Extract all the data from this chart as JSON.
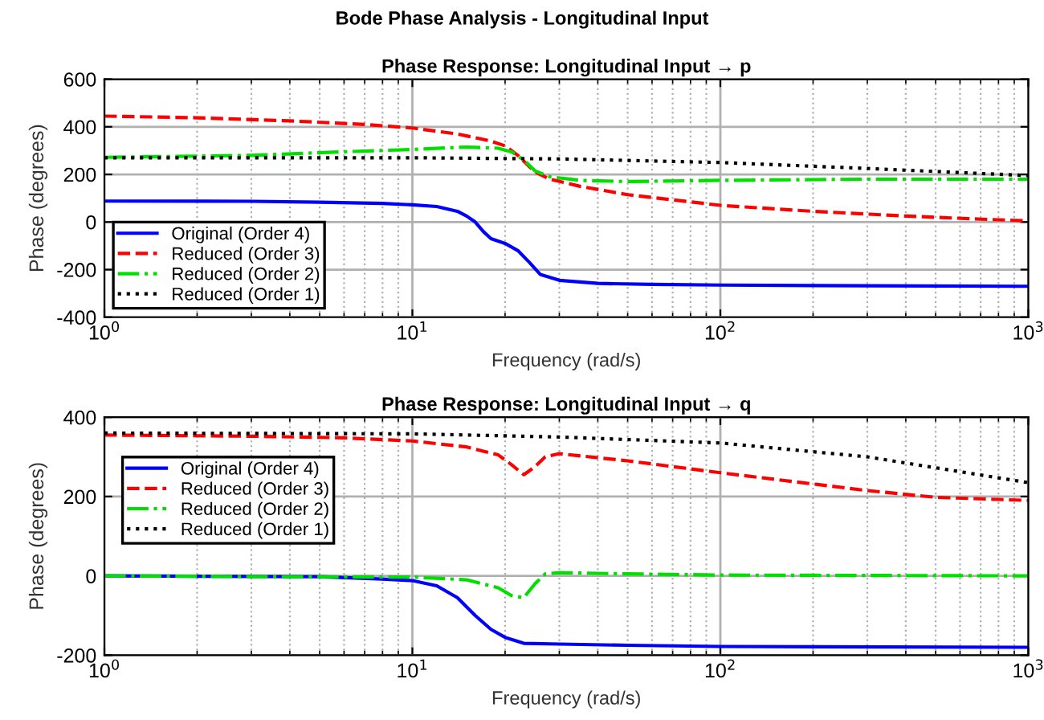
{
  "chart_data": [
    {
      "type": "line",
      "title": "Phase Response: Longitudinal Input → p",
      "annotations": [
        "Bode Phase Analysis - Longitudinal Input"
      ],
      "xlabel": "Frequency (rad/s)",
      "ylabel": "Phase (degrees)",
      "log": "x",
      "xlim": [
        1,
        1000
      ],
      "xticks": [
        {
          "value": 1,
          "label": "10$^{0}$"
        },
        {
          "value": 10,
          "label": "10$^{1}$"
        },
        {
          "value": 100,
          "label": "10$^{2}$"
        },
        {
          "value": 1000,
          "label": "10$^{3}$"
        }
      ],
      "ylim": [
        -400,
        600
      ],
      "yticks": [
        -400,
        -200,
        0,
        200,
        400,
        600
      ],
      "grid": true,
      "legend": "bottom left",
      "marker": "none",
      "series": [
        {
          "name": "Original (Order 4)",
          "color": "#0000ff",
          "line_style": "solid",
          "x": [
            1,
            3,
            5,
            8,
            10,
            12,
            14,
            15,
            16,
            17,
            18,
            20,
            22,
            24,
            26,
            30,
            40,
            60,
            100,
            300,
            1000
          ],
          "values": [
            88,
            87,
            83,
            78,
            72,
            65,
            45,
            25,
            0,
            -40,
            -70,
            -90,
            -120,
            -170,
            -220,
            -245,
            -258,
            -262,
            -265,
            -268,
            -270
          ]
        },
        {
          "name": "Reduced (Order 3)",
          "color": "#ff0000",
          "line_style": "dashed",
          "x": [
            1,
            2,
            4,
            7,
            10,
            14,
            18,
            20,
            22,
            25,
            28,
            35,
            50,
            100,
            200,
            400,
            700,
            1000
          ],
          "values": [
            445,
            438,
            425,
            410,
            395,
            370,
            340,
            320,
            280,
            210,
            180,
            150,
            115,
            70,
            45,
            25,
            12,
            5
          ]
        },
        {
          "name": "Reduced (Order 2)",
          "color": "#00e000",
          "line_style": "dashdot",
          "x": [
            1,
            3,
            6,
            10,
            15,
            19,
            21,
            23,
            25,
            28,
            35,
            50,
            100,
            300,
            1000
          ],
          "values": [
            272,
            280,
            295,
            305,
            315,
            310,
            295,
            260,
            215,
            190,
            175,
            170,
            175,
            180,
            180
          ]
        },
        {
          "name": "Reduced (Order 1)",
          "color": "#000000",
          "line_style": "dotted",
          "x": [
            1,
            10,
            30,
            100,
            300,
            1000
          ],
          "values": [
            270,
            270,
            265,
            250,
            225,
            195
          ]
        }
      ]
    },
    {
      "type": "line",
      "title": "Phase Response: Longitudinal Input → q",
      "xlabel": "Frequency (rad/s)",
      "ylabel": "Phase (degrees)",
      "log": "x",
      "xlim": [
        1,
        1000
      ],
      "xticks": [
        {
          "value": 1,
          "label": "10$^{0}$"
        },
        {
          "value": 10,
          "label": "10$^{1}$"
        },
        {
          "value": 100,
          "label": "10$^{2}$"
        },
        {
          "value": 1000,
          "label": "10$^{3}$"
        }
      ],
      "ylim": [
        -200,
        400
      ],
      "yticks": [
        -200,
        0,
        200,
        400
      ],
      "grid": true,
      "legend": "top left",
      "marker": "none",
      "series": [
        {
          "name": "Original (Order 4)",
          "color": "#0000ff",
          "line_style": "solid",
          "x": [
            1,
            5,
            8,
            10,
            12,
            14,
            16,
            18,
            20,
            23,
            30,
            50,
            100,
            1000
          ],
          "values": [
            0,
            -2,
            -8,
            -12,
            -25,
            -55,
            -100,
            -135,
            -155,
            -170,
            -172,
            -175,
            -178,
            -180
          ]
        },
        {
          "name": "Reduced (Order 3)",
          "color": "#ff0000",
          "line_style": "dashed",
          "x": [
            1,
            3,
            6,
            10,
            15,
            19,
            21,
            23,
            25,
            27,
            30,
            50,
            100,
            300,
            500,
            1000
          ],
          "values": [
            355,
            352,
            348,
            340,
            325,
            305,
            280,
            255,
            275,
            300,
            308,
            290,
            260,
            215,
            198,
            190
          ]
        },
        {
          "name": "Reduced (Order 2)",
          "color": "#00e000",
          "line_style": "dashdot",
          "x": [
            1,
            10,
            15,
            19,
            21,
            23,
            25,
            27,
            30,
            50,
            100,
            1000
          ],
          "values": [
            0,
            -3,
            -10,
            -30,
            -50,
            -55,
            -20,
            5,
            8,
            5,
            2,
            0
          ]
        },
        {
          "name": "Reduced (Order 1)",
          "color": "#000000",
          "line_style": "dotted",
          "x": [
            1,
            10,
            30,
            100,
            300,
            1000
          ],
          "values": [
            360,
            358,
            350,
            335,
            300,
            235
          ]
        }
      ]
    }
  ]
}
